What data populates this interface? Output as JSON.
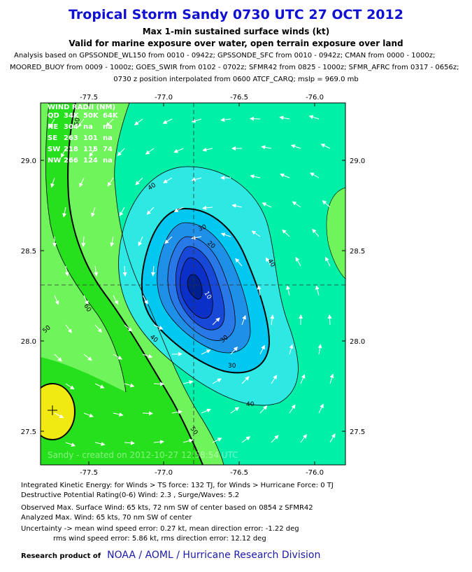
{
  "header": {
    "title": "Tropical Storm Sandy 0730 UTC 27 OCT 2012",
    "subtitle": "Max 1-min sustained surface winds (kt)",
    "validity": "Valid for marine exposure over water, open terrain exposure over land",
    "analysis_line1": "Analysis based on GPSSONDE_WL150 from 0010 - 0942z; GPSSONDE_SFC from 0010 - 0942z; CMAN from 0000 - 1000z;",
    "analysis_line2": "MOORED_BUOY from 0009 - 1000z; GOES_SWIR from 0102 - 0702z; SFMR42 from 0825 - 1000z; SFMR_AFRC from 0317 - 0656z;",
    "analysis_line3": "0730 z position interpolated from 0600 ATCF_CARQ; mslp = 969.0 mb"
  },
  "map": {
    "lon_range": [
      -77.85,
      -75.82
    ],
    "lat_range": [
      27.31,
      29.31
    ],
    "lon_ticks": [
      "-77.5",
      "-77.0",
      "-76.5",
      "-76.0"
    ],
    "lat_ticks": [
      "29.0",
      "28.5",
      "28.0",
      "27.5"
    ],
    "center_lon": -76.8,
    "center_lat": 28.31,
    "contour_labels": [
      "40",
      "30",
      "40",
      "20",
      "30",
      "30",
      "40",
      "40",
      "50",
      "50",
      "60",
      "50",
      "10"
    ],
    "watermark": "Sandy - created on 2012-10-27 12:58:54 UTC",
    "colors": {
      "50kt": "#6ff45c",
      "60kt": "#27e01d",
      "65kt": "#f0ea12",
      "40kt": "#00f0a8",
      "30kt": "#2ee8e4",
      "core": "#0030b0"
    }
  },
  "wind_radii": {
    "title": "WIND RADII (NM)",
    "header": [
      "QD",
      "34K",
      "50K",
      "64K"
    ],
    "rows": [
      [
        "NE",
        "304",
        "na",
        "na"
      ],
      [
        "SE",
        "263",
        "101",
        "na"
      ],
      [
        "SW",
        "218",
        "115",
        "74"
      ],
      [
        "NW",
        "266",
        "124",
        "na"
      ]
    ]
  },
  "footer": {
    "ike": "Integrated Kinetic Energy: for Winds > TS force: 132 TJ, for Winds > Hurricane Force: 0 TJ",
    "dpr": "Destructive Potential Rating(0-6)  Wind: 2.3 , Surge/Waves: 5.2",
    "observed": "Observed Max. Surface Wind: 65 kts, 72 nm SW of center based on 0854 z SFMR42",
    "analyzed": "Analyzed Max. Wind: 65 kts, 70 nm  SW of center",
    "uncertainty": "Uncertainty -> mean wind speed error: 0.27 kt, mean direction error:  -1.22 deg",
    "rms": "rms wind speed error: 5.86 kt, rms direction error: 12.12 deg",
    "credit_label": "Research product of",
    "credit_org": "NOAA  /  AOML  /  Hurricane Research Division"
  }
}
